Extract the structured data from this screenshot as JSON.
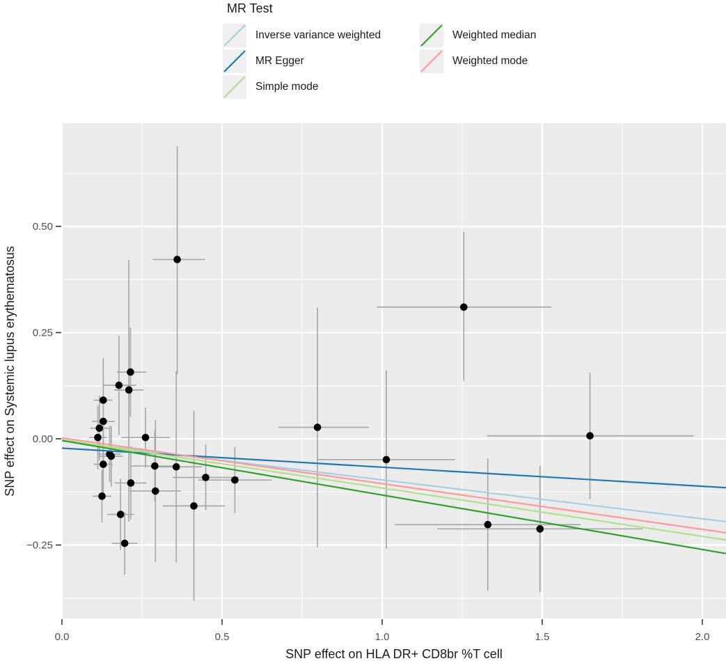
{
  "legend": {
    "title": "MR Test",
    "columns": [
      {
        "items": [
          {
            "label": "Inverse variance weighted",
            "color": "#a6cee3"
          },
          {
            "label": "MR Egger",
            "color": "#1f78b4"
          },
          {
            "label": "Simple mode",
            "color": "#b2df8a"
          }
        ]
      },
      {
        "items": [
          {
            "label": "Weighted median",
            "color": "#33a02c"
          },
          {
            "label": "Weighted mode",
            "color": "#fb9a99"
          }
        ]
      }
    ]
  },
  "chart_data": {
    "type": "scatter",
    "title": "MR Test",
    "xlabel": "SNP effect on HLA DR+ CD8br %T cell",
    "ylabel": "SNP effect on Systemic lupus erythematosus",
    "xlim": [
      0,
      2.074
    ],
    "ylim": [
      -0.4226,
      0.7426
    ],
    "grid": "on",
    "legend_position": "top",
    "x_ticks": [
      {
        "value": 0.0,
        "label": "0.0"
      },
      {
        "value": 0.5,
        "label": "0.5"
      },
      {
        "value": 1.0,
        "label": "1.0"
      },
      {
        "value": 1.5,
        "label": "1.5"
      },
      {
        "value": 2.0,
        "label": "2.0"
      }
    ],
    "y_ticks": [
      {
        "value": 0.5,
        "label": "0.50"
      },
      {
        "value": 0.25,
        "label": "0.25"
      },
      {
        "value": 0.0,
        "label": "0.00"
      },
      {
        "value": -0.25,
        "label": "−0.25"
      }
    ],
    "x_minor": [
      0.25,
      0.75,
      1.25,
      1.75
    ],
    "y_minor": [
      0.625,
      0.375,
      0.125,
      -0.125,
      -0.375
    ],
    "points": [
      {
        "x": 0.36,
        "y": 0.422,
        "xlo": 0.283,
        "xhi": 0.446,
        "ylo": 0.152,
        "yhi": 0.689
      },
      {
        "x": 1.255,
        "y": 0.31,
        "xlo": 0.984,
        "xhi": 1.528,
        "ylo": 0.137,
        "yhi": 0.487
      },
      {
        "x": 0.214,
        "y": 0.157,
        "xlo": 0.172,
        "xhi": 0.264,
        "ylo": 0.052,
        "yhi": 0.262
      },
      {
        "x": 0.178,
        "y": 0.126,
        "xlo": 0.128,
        "xhi": 0.232,
        "ylo": 0.009,
        "yhi": 0.243
      },
      {
        "x": 0.209,
        "y": 0.115,
        "xlo": 0.163,
        "xhi": 0.255,
        "ylo": -0.195,
        "yhi": 0.421
      },
      {
        "x": 0.129,
        "y": 0.091,
        "xlo": 0.1,
        "xhi": 0.158,
        "ylo": -0.008,
        "yhi": 0.19
      },
      {
        "x": 0.129,
        "y": 0.041,
        "xlo": 0.093,
        "xhi": 0.165,
        "ylo": -0.062,
        "yhi": 0.144
      },
      {
        "x": 0.117,
        "y": 0.025,
        "xlo": 0.088,
        "xhi": 0.146,
        "ylo": -0.052,
        "yhi": 0.102
      },
      {
        "x": 0.112,
        "y": 0.003,
        "xlo": 0.085,
        "xhi": 0.139,
        "ylo": -0.072,
        "yhi": 0.078
      },
      {
        "x": 0.261,
        "y": 0.003,
        "xlo": 0.185,
        "xhi": 0.337,
        "ylo": -0.068,
        "yhi": 0.074
      },
      {
        "x": 0.149,
        "y": -0.036,
        "xlo": 0.114,
        "xhi": 0.184,
        "ylo": -0.102,
        "yhi": 0.03
      },
      {
        "x": 0.154,
        "y": -0.041,
        "xlo": 0.118,
        "xhi": 0.19,
        "ylo": -0.112,
        "yhi": 0.03
      },
      {
        "x": 0.129,
        "y": -0.06,
        "xlo": 0.099,
        "xhi": 0.159,
        "ylo": -0.128,
        "yhi": 0.008
      },
      {
        "x": 0.29,
        "y": -0.064,
        "xlo": 0.213,
        "xhi": 0.367,
        "ylo": -0.148,
        "yhi": 0.02
      },
      {
        "x": 0.357,
        "y": -0.066,
        "xlo": 0.277,
        "xhi": 0.437,
        "ylo": -0.291,
        "yhi": 0.159
      },
      {
        "x": 0.215,
        "y": -0.104,
        "xlo": 0.165,
        "xhi": 0.265,
        "ylo": -0.19,
        "yhi": -0.018
      },
      {
        "x": 0.449,
        "y": -0.091,
        "xlo": 0.345,
        "xhi": 0.553,
        "ylo": -0.168,
        "yhi": -0.014
      },
      {
        "x": 0.54,
        "y": -0.097,
        "xlo": 0.425,
        "xhi": 0.655,
        "ylo": -0.175,
        "yhi": -0.019
      },
      {
        "x": 0.125,
        "y": -0.135,
        "xlo": 0.096,
        "xhi": 0.154,
        "ylo": -0.197,
        "yhi": -0.073
      },
      {
        "x": 0.292,
        "y": -0.123,
        "xlo": 0.212,
        "xhi": 0.372,
        "ylo": -0.29,
        "yhi": 0.044
      },
      {
        "x": 0.412,
        "y": -0.158,
        "xlo": 0.315,
        "xhi": 0.509,
        "ylo": -0.382,
        "yhi": 0.066
      },
      {
        "x": 0.183,
        "y": -0.178,
        "xlo": 0.141,
        "xhi": 0.225,
        "ylo": -0.262,
        "yhi": -0.094
      },
      {
        "x": 0.196,
        "y": -0.246,
        "xlo": 0.156,
        "xhi": 0.236,
        "ylo": -0.32,
        "yhi": -0.172
      },
      {
        "x": 0.798,
        "y": 0.027,
        "xlo": 0.676,
        "xhi": 0.959,
        "ylo": -0.255,
        "yhi": 0.309
      },
      {
        "x": 1.013,
        "y": -0.049,
        "xlo": 0.799,
        "xhi": 1.227,
        "ylo": -0.259,
        "yhi": 0.161
      },
      {
        "x": 1.649,
        "y": 0.007,
        "xlo": 1.328,
        "xhi": 1.973,
        "ylo": -0.142,
        "yhi": 0.156
      },
      {
        "x": 1.33,
        "y": -0.202,
        "xlo": 1.04,
        "xhi": 1.62,
        "ylo": -0.358,
        "yhi": -0.046
      },
      {
        "x": 1.493,
        "y": -0.212,
        "xlo": 1.172,
        "xhi": 1.814,
        "ylo": -0.36,
        "yhi": -0.064
      }
    ],
    "lines": [
      {
        "name": "inverse-variance-weighted",
        "label": "Inverse variance weighted",
        "color": "#a6cee3",
        "x0": 0,
        "y0": -0.005,
        "x1": 2.074,
        "y1": -0.195
      },
      {
        "name": "mr-egger",
        "label": "MR Egger",
        "color": "#1f78b4",
        "x0": 0,
        "y0": -0.022,
        "x1": 2.074,
        "y1": -0.115
      },
      {
        "name": "simple-mode",
        "label": "Simple mode",
        "color": "#b2df8a",
        "x0": 0,
        "y0": -0.002,
        "x1": 2.074,
        "y1": -0.238
      },
      {
        "name": "weighted-median",
        "label": "Weighted median",
        "color": "#33a02c",
        "x0": 0,
        "y0": -0.004,
        "x1": 2.074,
        "y1": -0.27
      },
      {
        "name": "weighted-mode",
        "label": "Weighted mode",
        "color": "#fb9a99",
        "x0": 0,
        "y0": 0.002,
        "x1": 2.074,
        "y1": -0.221
      }
    ],
    "styles": {
      "panel_bg": "#ebebeb",
      "grid_color": "#ffffff",
      "errorbar_color": "#a8a8a8",
      "point_color": "#000000",
      "tick_color": "#333333",
      "tick_label_color": "#4d4d4d",
      "axis_title_color": "#1a1a1a"
    }
  }
}
